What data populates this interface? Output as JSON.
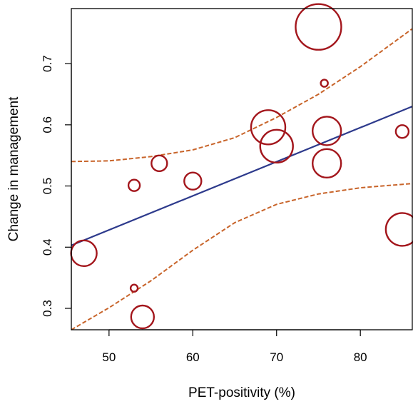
{
  "chart_data": {
    "type": "scatter",
    "xlabel": "PET-positivity (%)",
    "ylabel": "Change in management",
    "xlim": [
      45.5,
      86.2
    ],
    "ylim": [
      0.265,
      0.79
    ],
    "xticks": [
      50,
      60,
      70,
      80
    ],
    "yticks": [
      0.3,
      0.4,
      0.5,
      0.6,
      0.7
    ],
    "grid": false,
    "legend": "none",
    "colors": {
      "points": "#a3161c",
      "fit": "#2d3a8c",
      "ci": "#c8642a"
    },
    "points": [
      {
        "x": 47,
        "y": 0.39,
        "size": 18
      },
      {
        "x": 53,
        "y": 0.333,
        "size": 5
      },
      {
        "x": 53,
        "y": 0.501,
        "size": 8
      },
      {
        "x": 54,
        "y": 0.286,
        "size": 16
      },
      {
        "x": 56,
        "y": 0.537,
        "size": 11
      },
      {
        "x": 60,
        "y": 0.508,
        "size": 12
      },
      {
        "x": 69,
        "y": 0.596,
        "size": 24
      },
      {
        "x": 70,
        "y": 0.565,
        "size": 23
      },
      {
        "x": 75,
        "y": 0.76,
        "size": 32
      },
      {
        "x": 75.7,
        "y": 0.668,
        "size": 5
      },
      {
        "x": 76,
        "y": 0.59,
        "size": 20
      },
      {
        "x": 76,
        "y": 0.537,
        "size": 20
      },
      {
        "x": 85,
        "y": 0.589,
        "size": 9
      },
      {
        "x": 85,
        "y": 0.429,
        "size": 23
      }
    ],
    "fit_line": [
      {
        "x": 45.5,
        "y": 0.403
      },
      {
        "x": 86.2,
        "y": 0.63
      }
    ],
    "ci_upper": [
      {
        "x": 45.5,
        "y": 0.54
      },
      {
        "x": 50,
        "y": 0.541
      },
      {
        "x": 55,
        "y": 0.548
      },
      {
        "x": 60,
        "y": 0.559
      },
      {
        "x": 65,
        "y": 0.579
      },
      {
        "x": 70,
        "y": 0.612
      },
      {
        "x": 75,
        "y": 0.65
      },
      {
        "x": 80,
        "y": 0.695
      },
      {
        "x": 86.2,
        "y": 0.757
      }
    ],
    "ci_lower": [
      {
        "x": 45.5,
        "y": 0.265
      },
      {
        "x": 50,
        "y": 0.301
      },
      {
        "x": 55,
        "y": 0.345
      },
      {
        "x": 60,
        "y": 0.395
      },
      {
        "x": 65,
        "y": 0.44
      },
      {
        "x": 70,
        "y": 0.47
      },
      {
        "x": 75,
        "y": 0.487
      },
      {
        "x": 80,
        "y": 0.497
      },
      {
        "x": 86.2,
        "y": 0.504
      }
    ]
  }
}
